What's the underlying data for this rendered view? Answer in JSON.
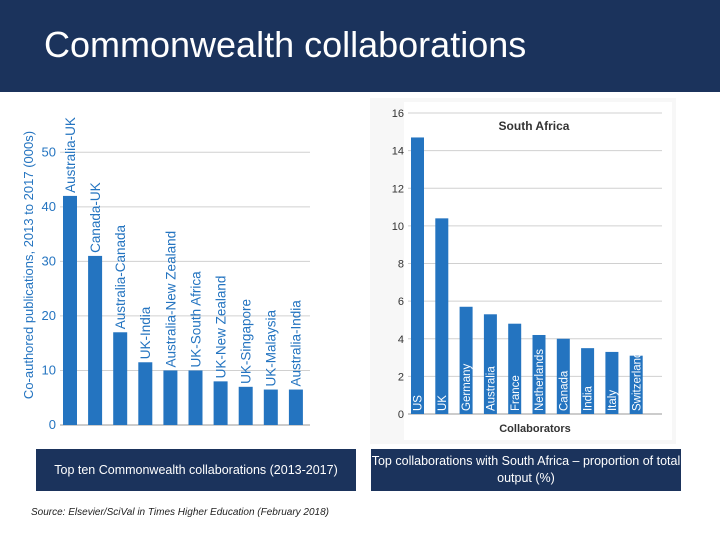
{
  "slide": {
    "title": "Commonwealth collaborations",
    "caption_left": "Top ten Commonwealth collaborations (2013-2017)",
    "caption_right": "Top collaborations with South Africa – proportion of total output (%)",
    "source": "Source: Elsevier/SciVal in Times Higher Education (February 2018)"
  },
  "colors": {
    "banner": "#1b335c",
    "bar": "#2474c0",
    "grid": "#d0d0d0"
  },
  "chart_data": [
    {
      "type": "bar",
      "title": "",
      "xlabel": "",
      "ylabel": "Co-authored publications, 2013 to 2017 (000s)",
      "ylim": [
        0,
        55
      ],
      "yticks": [
        0,
        10,
        20,
        30,
        40,
        50
      ],
      "grid": true,
      "categories": [
        "Australia-UK",
        "Canada-UK",
        "Australia-Canada",
        "UK-India",
        "Australia-New Zealand",
        "UK-South Africa",
        "UK-New Zealand",
        "UK-Singapore",
        "UK-Malaysia",
        "Australia-India"
      ],
      "values": [
        42,
        31,
        17,
        11.5,
        10,
        10,
        8,
        7,
        6.5,
        6.5
      ]
    },
    {
      "type": "bar",
      "title": "South Africa",
      "xlabel": "Collaborators",
      "ylabel": "",
      "ylim": [
        0,
        16
      ],
      "yticks": [
        0,
        2,
        4,
        6,
        8,
        10,
        12,
        14,
        16
      ],
      "grid": true,
      "categories": [
        "US",
        "UK",
        "Germany",
        "Australia",
        "France",
        "Netherlands",
        "Canada",
        "India",
        "Italy",
        "Switzerland"
      ],
      "values": [
        14.7,
        10.4,
        5.7,
        5.3,
        4.8,
        4.2,
        4.0,
        3.5,
        3.3,
        3.1
      ]
    }
  ]
}
